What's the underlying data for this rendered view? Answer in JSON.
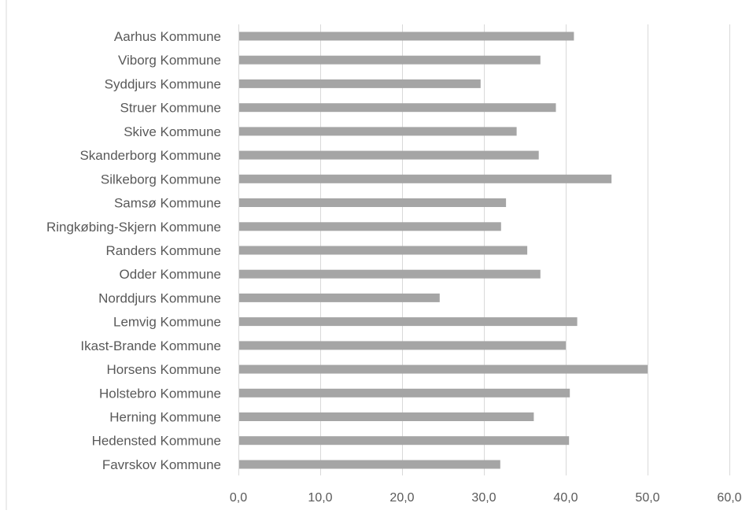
{
  "chart_data": {
    "type": "bar",
    "orientation": "horizontal",
    "title": "",
    "xlabel": "",
    "ylabel": "",
    "xlim": [
      0,
      60
    ],
    "x_ticks": [
      0,
      10,
      20,
      30,
      40,
      50,
      60
    ],
    "x_tick_labels": [
      "0,0",
      "10,0",
      "20,0",
      "30,0",
      "40,0",
      "50,0",
      "60,0"
    ],
    "grid": true,
    "legend": "none",
    "bar_color": "#a5a5a5",
    "categories": [
      "Aarhus Kommune",
      "Viborg Kommune",
      "Syddjurs Kommune",
      "Struer Kommune",
      "Skive Kommune",
      "Skanderborg Kommune",
      "Silkeborg Kommune",
      "Samsø Kommune",
      "Ringkøbing-Skjern Kommune",
      "Randers Kommune",
      "Odder Kommune",
      "Norddjurs Kommune",
      "Lemvig Kommune",
      "Ikast-Brande Kommune",
      "Horsens Kommune",
      "Holstebro Kommune",
      "Herning Kommune",
      "Hedensted Kommune",
      "Favrskov Kommune"
    ],
    "values": [
      41.0,
      36.9,
      29.6,
      38.8,
      34.0,
      36.7,
      45.6,
      32.7,
      32.1,
      35.3,
      36.9,
      24.6,
      41.4,
      40.0,
      50.0,
      40.5,
      36.1,
      40.4,
      32.0
    ]
  }
}
